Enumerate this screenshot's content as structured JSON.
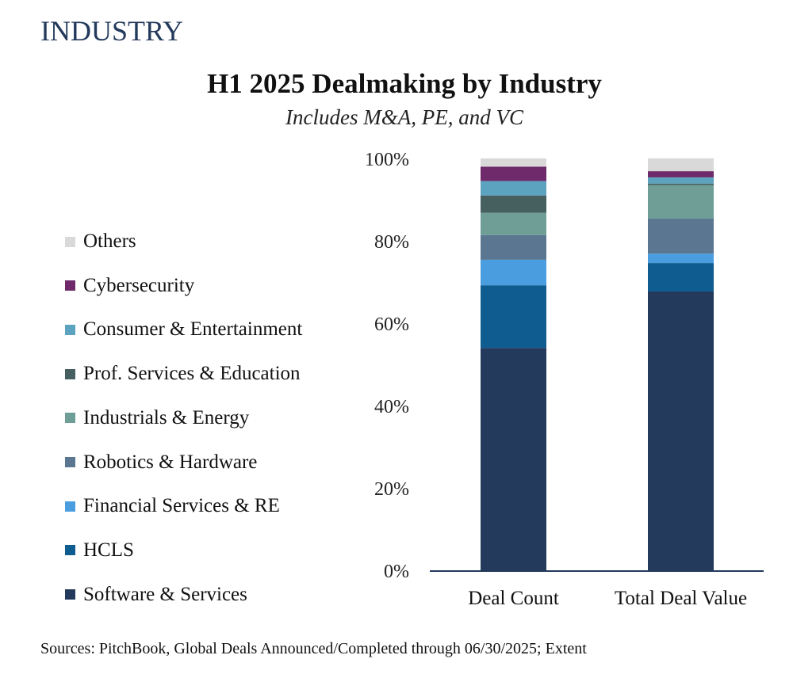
{
  "section_title": "INDUSTRY",
  "footer": "Sources: PitchBook, Global Deals Announced/Completed through 06/30/2025; Extent",
  "chart_data": {
    "type": "bar",
    "stacked": true,
    "normalized": true,
    "title": "H1 2025 Dealmaking by Industry",
    "subtitle": "Includes M&A, PE, and VC",
    "xlabel": "",
    "ylabel": "",
    "ylim": [
      0,
      100
    ],
    "yticks": [
      "0%",
      "20%",
      "40%",
      "60%",
      "80%",
      "100%"
    ],
    "grid": false,
    "legend_position": "left",
    "categories": [
      "Deal Count",
      "Total Deal Value"
    ],
    "series": [
      {
        "name": "Software & Services",
        "color": "#233a5c",
        "values": [
          54.0,
          67.7
        ]
      },
      {
        "name": "HCLS",
        "color": "#0f5c91",
        "values": [
          15.2,
          6.9
        ]
      },
      {
        "name": "Financial Services & RE",
        "color": "#4a9ee0",
        "values": [
          6.2,
          2.3
        ]
      },
      {
        "name": "Robotics & Hardware",
        "color": "#5a7690",
        "values": [
          6.0,
          8.5
        ]
      },
      {
        "name": "Industrials & Energy",
        "color": "#6e9e96",
        "values": [
          5.4,
          8.1
        ]
      },
      {
        "name": "Prof. Services & Education",
        "color": "#46605f",
        "values": [
          4.2,
          0.4
        ]
      },
      {
        "name": "Consumer & Entertainment",
        "color": "#5ba3bf",
        "values": [
          3.5,
          1.5
        ]
      },
      {
        "name": "Cybersecurity",
        "color": "#6e2a6a",
        "values": [
          3.5,
          1.5
        ]
      },
      {
        "name": "Others",
        "color": "#d9d9d9",
        "values": [
          2.0,
          3.1
        ]
      }
    ],
    "legend_order": [
      "Others",
      "Cybersecurity",
      "Consumer & Entertainment",
      "Prof. Services & Education",
      "Industrials & Energy",
      "Robotics & Hardware",
      "Financial Services & RE",
      "HCLS",
      "Software & Services"
    ],
    "axis_color": "#233a5c"
  }
}
